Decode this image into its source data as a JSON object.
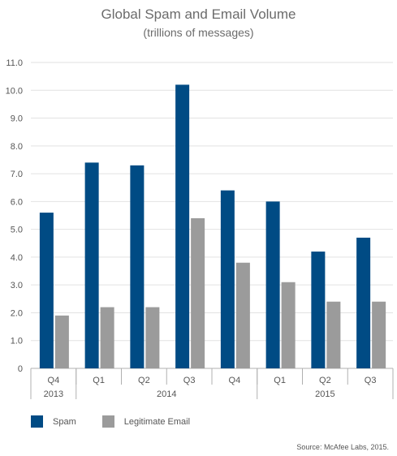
{
  "colors": {
    "spam": "#004b84",
    "legitimate": "#9b9b9b",
    "axis": "#b0b0b0",
    "grid": "#e2e2e2",
    "text": "#555555"
  },
  "legend": {
    "spam_label": "Spam",
    "legitimate_label": "Legitimate Email"
  },
  "source": "Source: McAfee Labs, 2015.",
  "chart_data": {
    "type": "bar",
    "title": "Global Spam and Email Volume",
    "subtitle": "(trillions of messages)",
    "categories": [
      "Q4",
      "Q1",
      "Q2",
      "Q3",
      "Q4",
      "Q1",
      "Q2",
      "Q3"
    ],
    "year_groups": [
      {
        "label": "2013",
        "count": 1
      },
      {
        "label": "2014",
        "count": 4
      },
      {
        "label": "2015",
        "count": 3
      }
    ],
    "series": [
      {
        "name": "Spam",
        "values": [
          5.6,
          7.4,
          7.3,
          10.2,
          6.4,
          6.0,
          4.2,
          4.7
        ]
      },
      {
        "name": "Legitimate Email",
        "values": [
          1.9,
          2.2,
          2.2,
          5.4,
          3.8,
          3.1,
          2.4,
          2.4
        ]
      }
    ],
    "ylim": [
      0,
      11
    ],
    "yticks": [
      "0",
      "1.0",
      "2.0",
      "3.0",
      "4.0",
      "5.0",
      "6.0",
      "7.0",
      "8.0",
      "9.0",
      "10.0",
      "11.0"
    ],
    "grid": true,
    "legend_position": "bottom-left"
  }
}
